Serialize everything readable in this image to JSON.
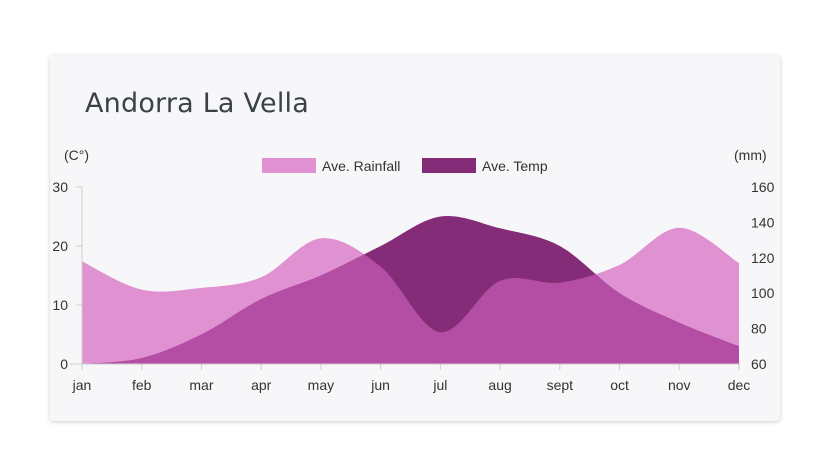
{
  "title": "Andorra La Vella",
  "chart_data": {
    "type": "area",
    "categories": [
      "jan",
      "feb",
      "mar",
      "apr",
      "may",
      "jun",
      "jul",
      "aug",
      "sept",
      "oct",
      "nov",
      "dec"
    ],
    "series": [
      {
        "name": "Ave. Rainfall",
        "axis": "right",
        "color": "#e091d2",
        "values": [
          118,
          102,
          103,
          109,
          131,
          115,
          78,
          107,
          106,
          116,
          137,
          117
        ]
      },
      {
        "name": "Ave. Temp",
        "axis": "left",
        "color": "#852c78",
        "values": [
          0,
          1,
          5,
          11,
          15,
          20,
          25,
          23,
          20,
          12,
          7,
          3
        ]
      }
    ],
    "overlap_color": "#b34ea4",
    "left_axis": {
      "label": "(C°)",
      "ticks": [
        "0",
        "10",
        "20",
        "30"
      ],
      "range": [
        0,
        30
      ]
    },
    "right_axis": {
      "label": "(mm)",
      "ticks": [
        "60",
        "80",
        "100",
        "120",
        "140",
        "160"
      ],
      "range": [
        60,
        160
      ]
    },
    "legend_position": "top-center"
  }
}
